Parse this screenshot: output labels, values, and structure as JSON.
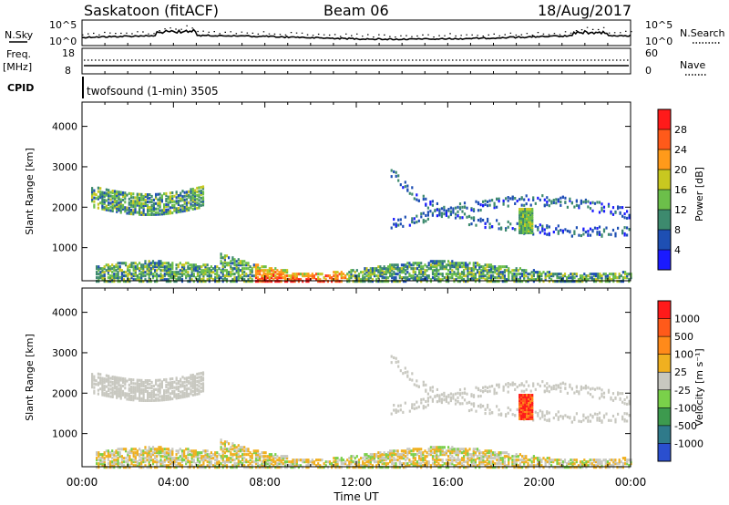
{
  "header": {
    "site": "Saskatoon (fitACF)",
    "beam": "Beam 06",
    "date": "18/Aug/2017"
  },
  "top_panels": {
    "nsky_label": "N.Sky",
    "nsky_ticks": [
      "10^5",
      "10^0"
    ],
    "nsearch_label": "N.Search",
    "nsearch_ticks": [
      "10^5",
      "10^0"
    ],
    "freq_label": "Freq.",
    "freq_unit": "[MHz]",
    "freq_ticks": [
      "18",
      "8"
    ],
    "nave_label": "Nave",
    "nave_ticks": [
      "60",
      "0"
    ],
    "cpid_label": "CPID",
    "cpid_text": "twofsound (1-min) 3505"
  },
  "chart_data": [
    {
      "type": "heatmap",
      "name": "power",
      "ylabel": "Slant Range [km]",
      "y_ticks": [
        1000,
        2000,
        3000,
        4000
      ],
      "ylim": [
        180,
        4600
      ],
      "x_ticks": [
        "00:00",
        "04:00",
        "08:00",
        "12:00",
        "16:00",
        "20:00",
        "00:00"
      ],
      "xlim_hours": [
        0,
        24
      ],
      "colorbar_label": "Power [dB]",
      "colorbar_ticks": [
        "4",
        "8",
        "12",
        "16",
        "20",
        "24",
        "28"
      ],
      "colorbar_colors": [
        "#1a1aff",
        "#1e4fb3",
        "#3d8a6e",
        "#6cbf4a",
        "#c8c820",
        "#ff9a1a",
        "#ff5a1a",
        "#ff1a1a"
      ]
    },
    {
      "type": "heatmap",
      "name": "velocity",
      "ylabel": "Slant Range [km]",
      "y_ticks": [
        1000,
        2000,
        3000,
        4000
      ],
      "ylim": [
        180,
        4600
      ],
      "x_ticks": [
        "00:00",
        "04:00",
        "08:00",
        "12:00",
        "16:00",
        "20:00",
        "00:00"
      ],
      "xlim_hours": [
        0,
        24
      ],
      "xlabel": "Time UT",
      "colorbar_label": "Velocity [m s⁻¹]",
      "colorbar_ticks": [
        "1000",
        "500",
        "100",
        "25",
        "-25",
        "-100",
        "-500",
        "-1000"
      ],
      "colorbar_colors": [
        "#2a4fcf",
        "#2f7a8a",
        "#3d9a4e",
        "#7ad04a",
        "#c8c8c0",
        "#f0b020",
        "#ff8a1a",
        "#ff5a1a",
        "#ff1a1a"
      ]
    }
  ]
}
